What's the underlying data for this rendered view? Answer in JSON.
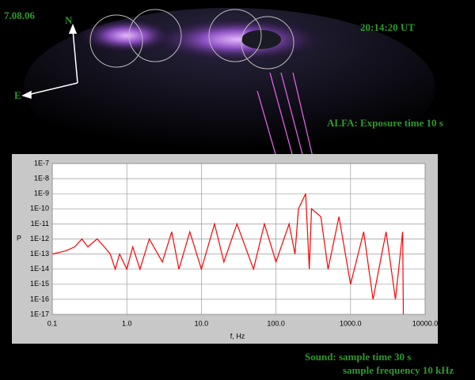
{
  "overlay": {
    "date": "7.08.06",
    "north": "N",
    "east": "E",
    "time": "20:14:20 UT",
    "exposure": "ALFA: Exposure time 10 s",
    "sound_time": "Sound: sample time 30 s",
    "sound_freq": "sample frequency 10 kHz"
  },
  "chart_data": {
    "type": "line",
    "xlabel": "f, Hz",
    "ylabel": "P",
    "color": "#ff0000",
    "xlog": true,
    "ylog": true,
    "grid": true,
    "x": [
      0.1,
      0.15,
      0.2,
      0.25,
      0.3,
      0.4,
      0.5,
      0.6,
      0.7,
      0.8,
      0.9,
      1.0,
      1.2,
      1.5,
      2,
      3,
      4,
      5,
      7,
      10,
      15,
      20,
      30,
      50,
      70,
      100,
      150,
      180,
      200,
      250,
      280,
      300,
      400,
      500,
      700,
      1000,
      1500,
      2000,
      3000,
      4000,
      5000,
      5100
    ],
    "values": [
      1e-13,
      1.6e-13,
      3e-13,
      1e-12,
      3e-13,
      1e-12,
      3e-13,
      1e-13,
      1e-14,
      1e-13,
      3e-14,
      1e-14,
      3e-13,
      1e-14,
      1e-12,
      3e-14,
      3e-12,
      1e-14,
      3e-12,
      1e-14,
      1e-11,
      3e-14,
      1e-11,
      1e-14,
      1e-11,
      3e-14,
      1e-11,
      1e-13,
      1e-10,
      1e-09,
      1e-14,
      1e-10,
      3e-11,
      1e-14,
      3e-11,
      1e-15,
      3e-12,
      1e-16,
      3e-12,
      1e-16,
      3e-12,
      1e-17
    ],
    "xlim": [
      0.1,
      10000
    ],
    "ylim": [
      1e-17,
      1e-07
    ],
    "xticks": [
      {
        "value": 0.1,
        "label": "0.1"
      },
      {
        "value": 1,
        "label": "1.0"
      },
      {
        "value": 10,
        "label": "10.0"
      },
      {
        "value": 100,
        "label": "100.0"
      },
      {
        "value": 1000,
        "label": "1000.0"
      },
      {
        "value": 10000,
        "label": "10000.0"
      }
    ],
    "yticks": [
      {
        "value": 1e-07,
        "label": "1E-7"
      },
      {
        "value": 1e-08,
        "label": "1E-8"
      },
      {
        "value": 1e-09,
        "label": "1E-9"
      },
      {
        "value": 1e-10,
        "label": "1E-10"
      },
      {
        "value": 1e-11,
        "label": "1E-11"
      },
      {
        "value": 1e-12,
        "label": "1E-12"
      },
      {
        "value": 1e-13,
        "label": "1E-13"
      },
      {
        "value": 1e-14,
        "label": "1E-14"
      },
      {
        "value": 1e-15,
        "label": "1E-15"
      },
      {
        "value": 1e-16,
        "label": "1E-16"
      },
      {
        "value": 1e-17,
        "label": "1E-17"
      }
    ]
  }
}
